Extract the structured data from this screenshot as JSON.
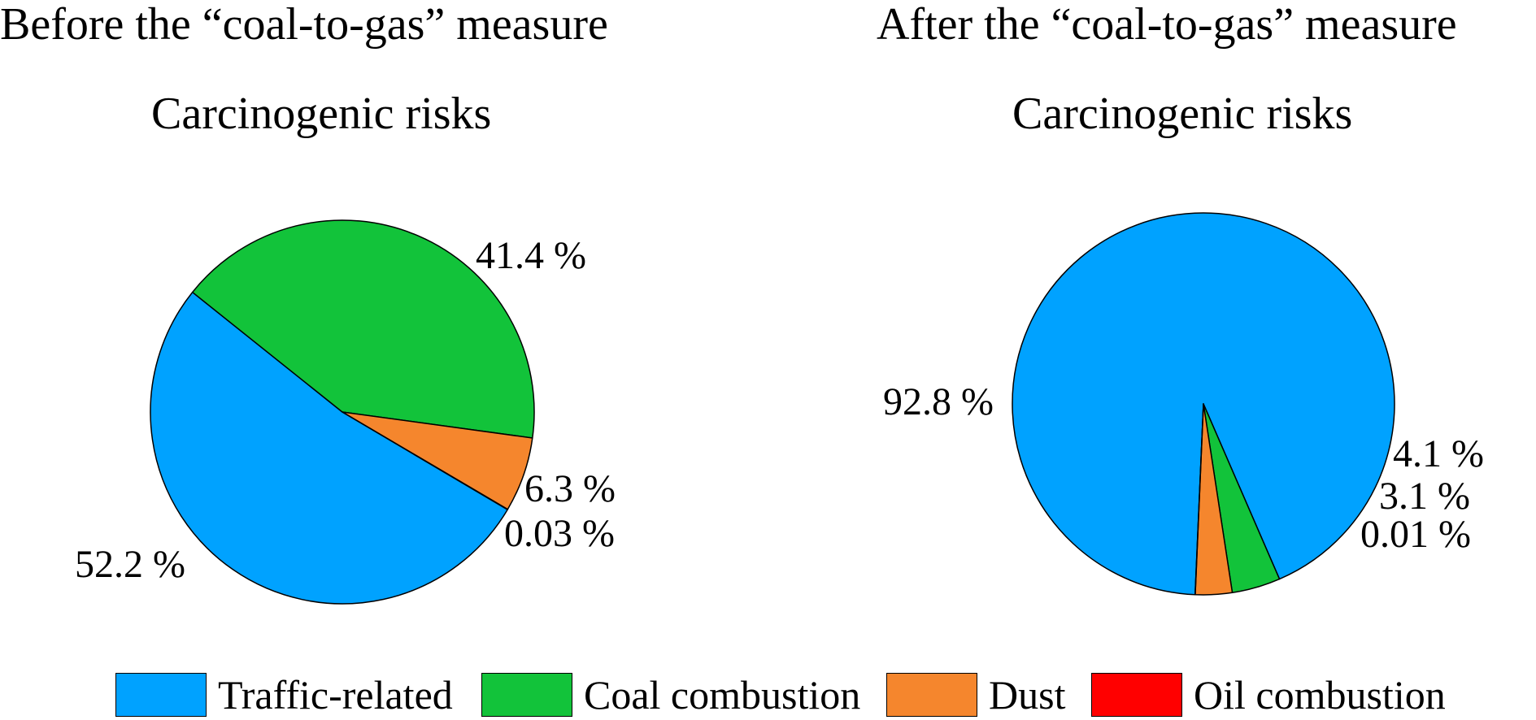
{
  "chart_data": [
    {
      "type": "pie",
      "title": "Before the “coal-to-gas” measure",
      "subtitle": "Carcinogenic risks",
      "slices": [
        {
          "name": "Traffic-related",
          "value": 52.2,
          "label": "52.2 %"
        },
        {
          "name": "Coal combustion",
          "value": 41.4,
          "label": "41.4 %"
        },
        {
          "name": "Dust",
          "value": 6.3,
          "label": "6.3 %"
        },
        {
          "name": "Oil combustion",
          "value": 0.03,
          "label": "0.03 %"
        }
      ]
    },
    {
      "type": "pie",
      "title": "After the “coal-to-gas” measure",
      "subtitle": "Carcinogenic risks",
      "slices": [
        {
          "name": "Traffic-related",
          "value": 92.8,
          "label": "92.8 %"
        },
        {
          "name": "Coal combustion",
          "value": 4.1,
          "label": "4.1 %"
        },
        {
          "name": "Dust",
          "value": 3.1,
          "label": "3.1 %"
        },
        {
          "name": "Oil combustion",
          "value": 0.01,
          "label": "0.01 %"
        }
      ]
    }
  ],
  "legend": {
    "items": [
      {
        "label": "Traffic-related",
        "color": "#00A2FF"
      },
      {
        "label": "Coal combustion",
        "color": "#12C33A"
      },
      {
        "label": "Dust",
        "color": "#F5862D"
      },
      {
        "label": "Oil combustion",
        "color": "#FF0000"
      }
    ]
  }
}
